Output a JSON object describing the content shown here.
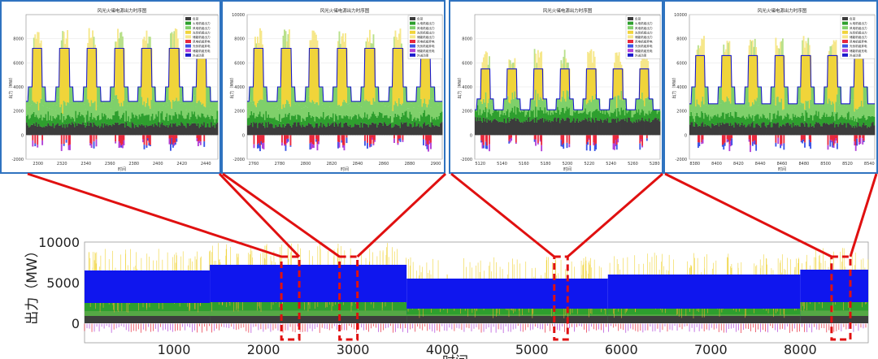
{
  "chart_data": [
    {
      "type": "area",
      "panel": "zoom-1",
      "title": "风光火储电源出力时序图",
      "ylabel": "出力（MW）",
      "xlabel": "时间",
      "ylim": [
        -2000,
        10000
      ],
      "xlim": [
        2290,
        2450
      ],
      "yticks": [
        -2000,
        0,
        2000,
        4000,
        6000,
        8000
      ],
      "xticks": [
        2300,
        2320,
        2340,
        2360,
        2380,
        2400,
        2420,
        2440
      ],
      "legend": [
        "负荷",
        "火电机组出力",
        "风电机组出力",
        "光伏机组出力",
        "储能机组出力",
        "风电机组弃电",
        "光伏机组弃电",
        "储能机组充电",
        "外送功率"
      ],
      "legend_placement": "top-right",
      "load_profile_mw": {
        "low": 2800,
        "mid": 4000,
        "high": 7200
      }
    },
    {
      "type": "area",
      "panel": "zoom-2",
      "title": "风光火储电源出力时序图",
      "ylabel": "出力（MW）",
      "xlabel": "时间",
      "ylim": [
        -2000,
        10000
      ],
      "xlim": [
        2755,
        2905
      ],
      "yticks": [
        -2000,
        0,
        2000,
        4000,
        6000,
        8000,
        10000
      ],
      "xticks": [
        2760,
        2780,
        2800,
        2820,
        2840,
        2860,
        2880,
        2900
      ],
      "legend": [
        "负荷",
        "火电机组出力",
        "风电机组出力",
        "光伏机组出力",
        "储能机组出力",
        "风电机组弃电",
        "光伏机组弃电",
        "储能机组充电",
        "外送功率"
      ],
      "legend_placement": "top-right",
      "load_profile_mw": {
        "low": 2800,
        "mid": 4000,
        "high": 7200
      }
    },
    {
      "type": "area",
      "panel": "zoom-3",
      "title": "风光火储电源出力时序图",
      "ylabel": "出力（MW）",
      "xlabel": "时间",
      "ylim": [
        -2000,
        10000
      ],
      "xlim": [
        5115,
        5285
      ],
      "yticks": [
        -2000,
        0,
        2000,
        4000,
        6000,
        8000
      ],
      "xticks": [
        5120,
        5140,
        5160,
        5180,
        5200,
        5220,
        5240,
        5260,
        5280
      ],
      "legend": [
        "负荷",
        "火电机组出力",
        "风电机组出力",
        "光伏机组出力",
        "储能机组出力",
        "风电机组弃电",
        "光伏机组弃电",
        "储能机组充电",
        "外送功率"
      ],
      "legend_placement": "top-right",
      "load_profile_mw": {
        "low": 2100,
        "mid": 3000,
        "high": 5500
      }
    },
    {
      "type": "area",
      "panel": "zoom-4",
      "title": "风光火储电源出力时序图",
      "ylabel": "出力（MW）",
      "xlabel": "时间",
      "ylim": [
        -2000,
        10000
      ],
      "xlim": [
        8375,
        8545
      ],
      "yticks": [
        -2000,
        0,
        2000,
        4000,
        6000,
        8000,
        10000
      ],
      "xticks": [
        8380,
        8400,
        8420,
        8440,
        8460,
        8480,
        8500,
        8520,
        8540
      ],
      "legend": [
        "负荷",
        "火电机组出力",
        "风电机组出力",
        "光伏机组出力",
        "储能机组出力",
        "风电机组弃电",
        "光伏机组弃电",
        "储能机组充电",
        "外送功率"
      ],
      "legend_placement": "top-right",
      "load_profile_mw": {
        "low": 2600,
        "mid": 4000,
        "high": 6600
      }
    },
    {
      "type": "area",
      "panel": "overview",
      "title": "",
      "ylabel": "出力（MW）",
      "xlabel": "时间",
      "ylim": [
        -1000,
        10000
      ],
      "xlim": [
        0,
        8760
      ],
      "yticks": [
        0,
        5000,
        10000
      ],
      "xticks": [
        1000,
        2000,
        3000,
        4000,
        5000,
        6000,
        7000,
        8000
      ],
      "segments": [
        {
          "x0": 0,
          "x1": 1400,
          "peak": 6500,
          "base": 2500
        },
        {
          "x0": 1400,
          "x1": 3600,
          "peak": 7200,
          "base": 2600
        },
        {
          "x0": 3600,
          "x1": 5850,
          "peak": 5500,
          "base": 1800
        },
        {
          "x0": 5850,
          "x1": 8000,
          "peak": 6000,
          "base": 1800
        },
        {
          "x0": 8000,
          "x1": 8760,
          "peak": 6600,
          "base": 2600
        }
      ],
      "zoom_windows": [
        [
          2200,
          2400
        ],
        [
          2850,
          3050
        ],
        [
          5250,
          5400
        ],
        [
          8350,
          8560
        ]
      ]
    }
  ],
  "colors": {
    "panel_border": "#2f73c0",
    "connector": "#e01010",
    "thermal": "#3c3c3c",
    "wind_dark": "#2e9f2e",
    "wind_light": "#7fd06a",
    "solar": "#f0d43a",
    "solar_curtail": "#f6e78a",
    "wind_curtail": "#b8e08a",
    "charge_red": "#e8283c",
    "charge_blue": "#3b54e6",
    "charge_purple": "#b040d8",
    "load_line": "#1a1acc",
    "overview_fill": "#0f16ee"
  }
}
